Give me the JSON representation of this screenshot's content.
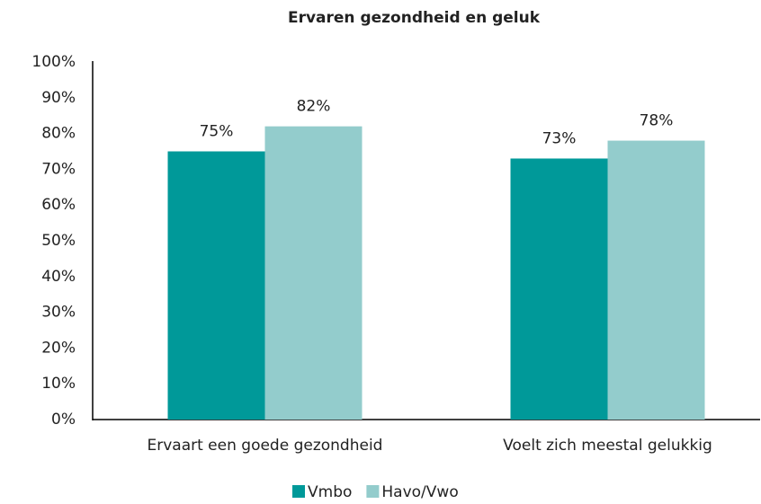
{
  "chart_data": {
    "type": "bar",
    "title": "Ervaren gezondheid en geluk",
    "categories": [
      "Ervaart een goede gezondheid",
      "Voelt zich meestal gelukkig"
    ],
    "series": [
      {
        "name": "Vmbo",
        "color": "#009999",
        "values": [
          75,
          73
        ],
        "value_labels": [
          "75%",
          "73%"
        ]
      },
      {
        "name": "Havo/Vwo",
        "color": "#93cccc",
        "values": [
          82,
          78
        ],
        "value_labels": [
          "82%",
          "78%"
        ]
      }
    ],
    "ylim": [
      0,
      100
    ],
    "yticks": [
      {
        "value": 0,
        "label": "0%"
      },
      {
        "value": 10,
        "label": "10%"
      },
      {
        "value": 20,
        "label": "20%"
      },
      {
        "value": 30,
        "label": "30%"
      },
      {
        "value": 40,
        "label": "40%"
      },
      {
        "value": 50,
        "label": "50%"
      },
      {
        "value": 60,
        "label": "60%"
      },
      {
        "value": 70,
        "label": "70%"
      },
      {
        "value": 80,
        "label": "80%"
      },
      {
        "value": 90,
        "label": "90%"
      },
      {
        "value": 100,
        "label": "100%"
      }
    ],
    "grid": false,
    "legend": "bottom"
  }
}
